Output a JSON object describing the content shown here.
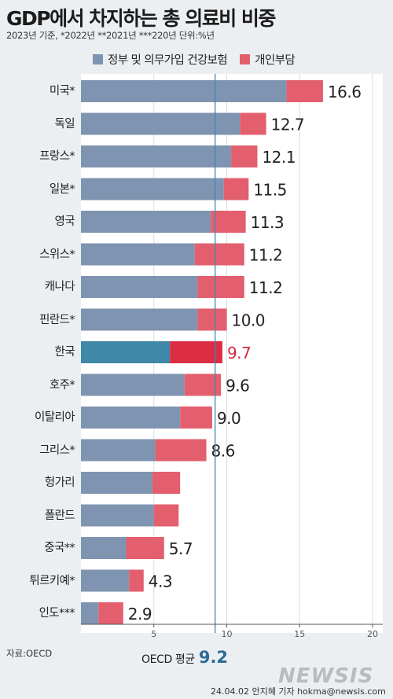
{
  "title": "GDP에서 차지하는 총 의료비 비중",
  "subtitle": "2023년 기준, *2022년 **2021년 ***220년 단위:%년",
  "legend": {
    "government": "정부 및 의무가입 건강보험",
    "private": "개인부담"
  },
  "colors": {
    "government": "#7f94b1",
    "private": "#e35f6e",
    "korea_government": "#3f88a8",
    "korea_private": "#dc2d45",
    "korea_label": "#d42a43",
    "average_line": "#3a8bb0",
    "grid": "#d9dde2",
    "axis": "#555555"
  },
  "source": "자료:OECD",
  "oecd_average": {
    "label": "OECD 평균",
    "value": "9.2"
  },
  "logo": "NEWSIS",
  "credit": "24.04.02 안지혜 기자 hokma@newsis.com",
  "chart_data": {
    "type": "bar",
    "orientation": "horizontal",
    "stacked": true,
    "categories": [
      "미국*",
      "독일",
      "프랑스*",
      "일본*",
      "영국",
      "스위스*",
      "캐나다",
      "핀란드*",
      "한국",
      "호주*",
      "이탈리아",
      "그리스*",
      "헝가리",
      "폴란드",
      "중국**",
      "튀르키예*",
      "인도***"
    ],
    "series": [
      {
        "name": "정부 및 의무가입 건강보험",
        "key": "government",
        "values": [
          14.1,
          10.9,
          10.3,
          9.8,
          8.9,
          7.8,
          8.0,
          8.0,
          6.1,
          7.1,
          6.8,
          5.1,
          4.9,
          5.0,
          3.1,
          3.3,
          1.2
        ]
      },
      {
        "name": "개인부담",
        "key": "private",
        "values": [
          2.5,
          1.8,
          1.8,
          1.7,
          2.4,
          3.4,
          3.2,
          2.0,
          3.6,
          2.5,
          2.2,
          3.5,
          1.9,
          1.7,
          2.6,
          1.0,
          1.7
        ]
      }
    ],
    "totals": [
      "16.6",
      "12.7",
      "12.1",
      "11.5",
      "11.3",
      "11.2",
      "11.2",
      "10.0",
      "9.7",
      "9.6",
      "9.0",
      "8.6",
      "",
      "",
      "5.7",
      "4.3",
      "2.9"
    ],
    "highlight": "한국",
    "average_line": 9.2,
    "xticks": [
      5,
      10,
      15,
      20
    ],
    "xlim": [
      0,
      20.7
    ],
    "grid": true
  }
}
